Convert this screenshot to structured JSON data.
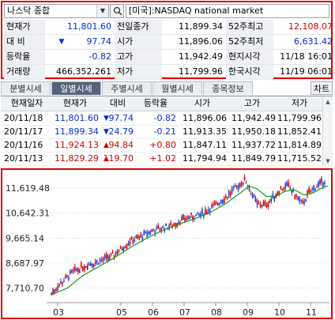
{
  "header": {
    "index_name": "나스닥 종합",
    "market_label": "[미국]:NASDAQ national market"
  },
  "quote": {
    "current_label": "현재가",
    "current_value": "11,801.60",
    "prev_close_label": "전일종가",
    "prev_close_value": "11,899.34",
    "high52_label": "52주최고",
    "high52_value": "12,108.07",
    "change_label": "대 비",
    "change_value": "97.74",
    "open_label": "시가",
    "open_value": "11,896.06",
    "low52_label": "52주최저",
    "low52_value": "6,631.42",
    "rate_label": "등락율",
    "rate_value": "-0.82",
    "high_label": "고가",
    "high_value": "11,942.49",
    "local_time_label": "현지시각",
    "local_time_value": "11/18 16:01",
    "volume_label": "거래량",
    "volume_value": "466,352,261",
    "low_label": "저가",
    "low_value": "11,799.96",
    "korea_time_label": "한국시각",
    "korea_time_value": "11/19 06:01"
  },
  "tabs": [
    "분별시세",
    "일별시세",
    "주별시세",
    "월별시세",
    "종목정보"
  ],
  "chart_button": "차트",
  "daily": {
    "columns": [
      "현재일자",
      "현재가",
      "대비",
      "등락율",
      "시가",
      "고가",
      "저가"
    ],
    "rows": [
      {
        "date": "20/11/18",
        "price": "11,801.60",
        "dir": "down",
        "change": "97.74",
        "rate": "-0.82",
        "open": "11,896.06",
        "high": "11,942.49",
        "low": "11,799.96"
      },
      {
        "date": "20/11/17",
        "price": "11,899.34",
        "dir": "down",
        "change": "24.79",
        "rate": "-0.21",
        "open": "11,913.35",
        "high": "11,950.18",
        "low": "11,852.41"
      },
      {
        "date": "20/11/16",
        "price": "11,924.13",
        "dir": "up",
        "change": "94.84",
        "rate": "+0.80",
        "open": "11,847.11",
        "high": "11,937.72",
        "low": "11,814.89"
      },
      {
        "date": "20/11/13",
        "price": "11,829.29",
        "dir": "up",
        "change": "119.70",
        "rate": "+1.02",
        "open": "11,794.94",
        "high": "11,849.79",
        "low": "11,715.52"
      }
    ]
  },
  "chart_data": {
    "type": "candlestick",
    "y_ticks": [
      "11,619.48",
      "10,642.31",
      "9,665.14",
      "8,687.97",
      "7,710.70"
    ],
    "y_tick_values": [
      11619.48,
      10642.31,
      9665.14,
      8687.97,
      7710.7
    ],
    "ylim": [
      7200,
      12150
    ],
    "x_ticks": [
      "03",
      "05",
      "06",
      "07",
      "08",
      "09",
      "10",
      "11"
    ],
    "x_tick_months": [
      3,
      5,
      6,
      7,
      8,
      9,
      10,
      11
    ],
    "xlim": [
      2.75,
      11.6
    ],
    "colors": {
      "up": "#d40000",
      "down": "#1d3fd0",
      "ma": "#1a9a1a"
    },
    "series": [
      {
        "name": "close",
        "x": [
          2.8,
          3.1,
          3.5,
          3.9,
          4.3,
          4.7,
          5.0,
          5.3,
          5.7,
          6.0,
          6.3,
          6.6,
          6.9,
          7.2,
          7.5,
          7.8,
          8.1,
          8.4,
          8.7,
          8.95,
          9.1,
          9.3,
          9.55,
          9.8,
          10.05,
          10.3,
          10.5,
          10.75,
          10.95,
          11.2,
          11.45
        ],
        "y": [
          7500,
          7900,
          8350,
          8600,
          8750,
          8950,
          9250,
          9550,
          9750,
          9950,
          10050,
          10150,
          10350,
          10500,
          10550,
          10800,
          11050,
          11350,
          11700,
          11950,
          11500,
          11000,
          10950,
          11200,
          11600,
          11700,
          11350,
          11000,
          11450,
          11700,
          11900
        ]
      },
      {
        "name": "ma",
        "x": [
          2.8,
          3.3,
          3.8,
          4.3,
          4.8,
          5.3,
          5.8,
          6.3,
          6.8,
          7.3,
          7.8,
          8.3,
          8.8,
          9.05,
          9.3,
          9.6,
          9.9,
          10.2,
          10.5,
          10.8,
          11.1,
          11.4,
          11.55
        ],
        "y": [
          7450,
          7700,
          8200,
          8550,
          8900,
          9300,
          9650,
          9950,
          10200,
          10400,
          10650,
          11000,
          11450,
          11700,
          11600,
          11300,
          11300,
          11500,
          11550,
          11350,
          11450,
          11650,
          11700
        ]
      }
    ]
  }
}
